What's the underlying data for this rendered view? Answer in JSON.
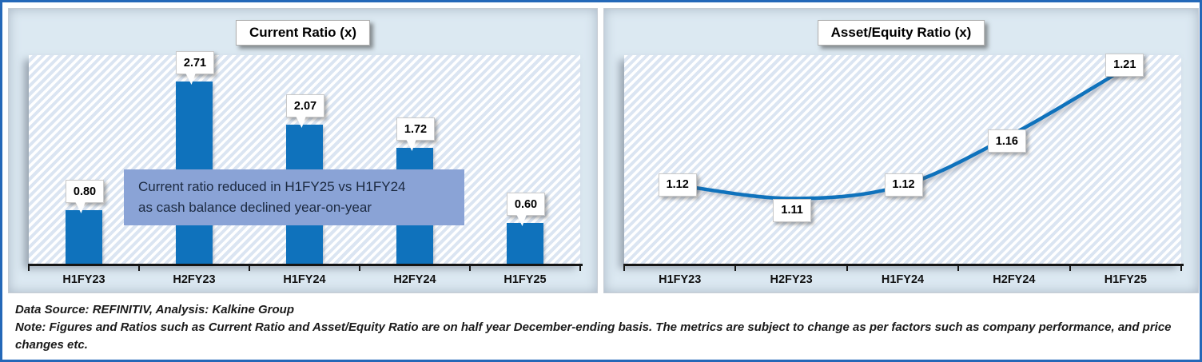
{
  "page": {
    "border_color": "#2468B8",
    "panel_bg": "#DCE9F2",
    "stripe_color": "#DBE5F2"
  },
  "chart_data": [
    {
      "type": "bar",
      "title": "Current Ratio (x)",
      "categories": [
        "H1FY23",
        "H2FY23",
        "H1FY24",
        "H2FY24",
        "H1FY25"
      ],
      "values": [
        0.8,
        2.71,
        2.07,
        1.72,
        0.6
      ],
      "value_labels": [
        "0.80",
        "2.71",
        "2.07",
        "1.72",
        "0.60"
      ],
      "ylim": [
        0,
        3.1
      ],
      "xlabel": "",
      "ylabel": "",
      "grid": false,
      "legend": "none",
      "data_labels": "callout-boxes",
      "bar_color": "#0F72BC",
      "annotation_bg": "#8AA3D6",
      "annotation_lines": [
        "Current ratio reduced in H1FY25 vs H1FY24",
        "as cash balance declined year-on-year"
      ]
    },
    {
      "type": "line",
      "title": "Asset/Equity Ratio (x)",
      "categories": [
        "H1FY23",
        "H2FY23",
        "H1FY24",
        "H2FY24",
        "H1FY25"
      ],
      "values": [
        1.12,
        1.11,
        1.12,
        1.16,
        1.21
      ],
      "value_labels": [
        "1.12",
        "1.11",
        "1.12",
        "1.16",
        "1.21"
      ],
      "ylim": [
        1.06,
        1.22
      ],
      "xlabel": "",
      "ylabel": "",
      "grid": false,
      "legend": "none",
      "data_labels": "boxes",
      "line_color": "#0F72BC",
      "line_style": "smooth"
    }
  ],
  "footer": {
    "source_line": "Data Source: REFINITIV, Analysis: Kalkine Group",
    "note_line": "Note: Figures and Ratios such as Current Ratio and Asset/Equity Ratio are on half year December-ending basis. The metrics are subject to change as per factors such as company performance, and price changes etc."
  }
}
